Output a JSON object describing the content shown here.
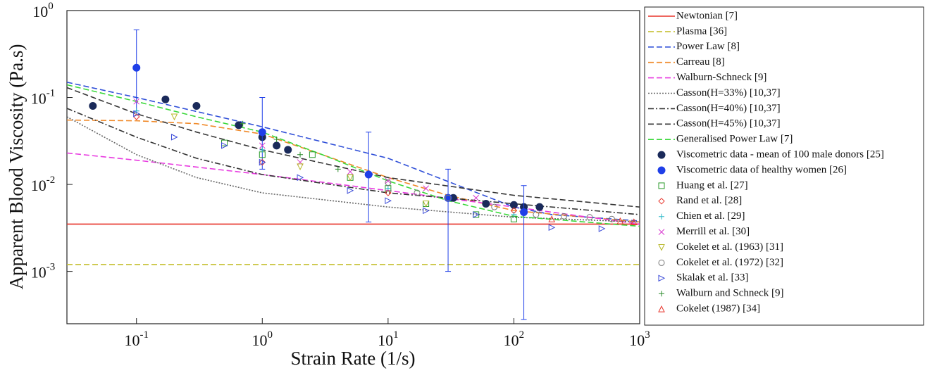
{
  "chart_data": {
    "type": "line",
    "xlabel": "Strain Rate (1/s)",
    "ylabel": "Apparent Blood Viscosity (Pa.s)",
    "xscale": "log",
    "yscale": "log",
    "xlim": [
      0.028,
      1000
    ],
    "ylim": [
      0.00025,
      1
    ],
    "xticks": [
      {
        "value": 0.1,
        "label": "10",
        "exponent": "-1"
      },
      {
        "value": 1,
        "label": "10",
        "exponent": "0"
      },
      {
        "value": 10,
        "label": "10",
        "exponent": "1"
      },
      {
        "value": 100,
        "label": "10",
        "exponent": "2"
      },
      {
        "value": 1000,
        "label": "10",
        "exponent": "3"
      }
    ],
    "yticks": [
      {
        "value": 0.001,
        "label": "10",
        "exponent": "-3"
      },
      {
        "value": 0.01,
        "label": "10",
        "exponent": "-2"
      },
      {
        "value": 0.1,
        "label": "10",
        "exponent": "-1"
      },
      {
        "value": 1,
        "label": "10",
        "exponent": "0"
      }
    ],
    "legend": "outside-right",
    "series": [
      {
        "name": "Newtonian [7]",
        "color": "#e8332a",
        "line_style": "solid",
        "x": [
          0.028,
          1000
        ],
        "values": [
          0.0035,
          0.0035
        ]
      },
      {
        "name": "Plasma [36]",
        "color": "#c8c23a",
        "line_style": "dashed",
        "x": [
          0.028,
          1000
        ],
        "values": [
          0.0012,
          0.0012
        ]
      },
      {
        "name": "Power Law [8]",
        "color": "#2f4fd8",
        "line_style": "dashed",
        "x": [
          0.028,
          0.1,
          1,
          10,
          100,
          200,
          1000
        ],
        "values": [
          0.15,
          0.1,
          0.046,
          0.02,
          0.0055,
          0.0045,
          0.0038
        ]
      },
      {
        "name": "Carreau [8]",
        "color": "#f08a2a",
        "line_style": "dashed",
        "x": [
          0.028,
          0.1,
          0.3,
          1,
          3,
          10,
          30,
          100,
          1000
        ],
        "values": [
          0.055,
          0.054,
          0.05,
          0.038,
          0.022,
          0.012,
          0.0075,
          0.005,
          0.0037
        ]
      },
      {
        "name": "Walburn-Schneck [9]",
        "color": "#e83ae0",
        "line_style": "dashed",
        "x": [
          0.028,
          0.1,
          1,
          10,
          100,
          1000
        ],
        "values": [
          0.023,
          0.019,
          0.013,
          0.0085,
          0.0055,
          0.0035
        ]
      },
      {
        "name": "Casson(H=33%) [10,37]",
        "color": "#666666",
        "line_style": "dotted",
        "x": [
          0.028,
          0.1,
          0.3,
          1,
          10,
          100,
          1000
        ],
        "values": [
          0.06,
          0.022,
          0.012,
          0.008,
          0.0055,
          0.0042,
          0.0037
        ]
      },
      {
        "name": "Casson(H=40%) [10,37]",
        "color": "#333333",
        "line_style": "dashdot",
        "x": [
          0.028,
          0.1,
          0.3,
          1,
          10,
          100,
          1000
        ],
        "values": [
          0.075,
          0.035,
          0.02,
          0.013,
          0.008,
          0.006,
          0.0045
        ]
      },
      {
        "name": "Casson(H=45%) [10,37]",
        "color": "#333333",
        "line_style": "dashed",
        "x": [
          0.028,
          0.1,
          0.3,
          1,
          10,
          100,
          1000
        ],
        "values": [
          0.13,
          0.065,
          0.04,
          0.025,
          0.012,
          0.0075,
          0.0055
        ]
      },
      {
        "name": "Generalised Power Law [7]",
        "color": "#3ad83a",
        "line_style": "dashed",
        "x": [
          0.028,
          0.1,
          0.3,
          1,
          3,
          10,
          30,
          100,
          1000
        ],
        "values": [
          0.14,
          0.09,
          0.06,
          0.04,
          0.022,
          0.011,
          0.0065,
          0.0043,
          0.0033
        ]
      },
      {
        "name": "Viscometric data - mean of 100 male donors [25]",
        "color": "#1a2a5a",
        "marker": "circle-filled",
        "x": [
          0.045,
          0.17,
          0.3,
          0.65,
          1,
          1.3,
          1.6,
          30,
          33,
          60,
          100,
          120,
          160
        ],
        "values": [
          0.08,
          0.095,
          0.08,
          0.048,
          0.035,
          0.028,
          0.025,
          0.007,
          0.007,
          0.006,
          0.0058,
          0.0055,
          0.0055
        ]
      },
      {
        "name": "Viscometric data of healthy women [26]",
        "color": "#1f3fe8",
        "marker": "circle-filled",
        "x": [
          0.1,
          1,
          7,
          30,
          120
        ],
        "values": [
          0.22,
          0.04,
          0.013,
          0.007,
          0.0048
        ],
        "lower": [
          0.07,
          0.015,
          0.0037,
          0.001,
          0.00028
        ],
        "upper": [
          0.6,
          0.1,
          0.04,
          0.015,
          0.0097
        ]
      },
      {
        "name": "Huang et al. [27]",
        "color": "#2a9a2a",
        "marker": "square",
        "x": [
          0.5,
          1,
          2.5,
          5,
          10,
          20,
          50,
          100
        ],
        "values": [
          0.03,
          0.022,
          0.022,
          0.012,
          0.009,
          0.006,
          0.0045,
          0.004
        ]
      },
      {
        "name": "Rand et al. [28]",
        "color": "#e8332a",
        "marker": "diamond",
        "x": [
          0.1,
          1,
          10,
          100
        ],
        "values": [
          0.06,
          0.018,
          0.008,
          0.005
        ]
      },
      {
        "name": "Chien et al. [29]",
        "color": "#2ab8c8",
        "marker": "plus",
        "x": [
          0.1,
          1,
          10,
          100
        ],
        "values": [
          0.07,
          0.025,
          0.009,
          0.0045
        ]
      },
      {
        "name": "Merrill et al. [30]",
        "color": "#d83ad0",
        "marker": "x",
        "x": [
          0.1,
          1,
          2,
          5,
          10,
          20,
          50
        ],
        "values": [
          0.09,
          0.028,
          0.018,
          0.014,
          0.011,
          0.009,
          0.007
        ]
      },
      {
        "name": "Cokelet et al. (1963) [31]",
        "color": "#b8b82a",
        "marker": "triangle-down",
        "x": [
          0.2,
          2,
          5,
          20
        ],
        "values": [
          0.06,
          0.016,
          0.012,
          0.006
        ]
      },
      {
        "name": "Cokelet et al. (1972) [32]",
        "color": "#777777",
        "marker": "circle",
        "x": [
          10,
          17,
          30,
          70,
          150,
          250,
          400,
          600
        ],
        "values": [
          0.0105,
          0.008,
          0.007,
          0.0055,
          0.0045,
          0.0043,
          0.0042,
          0.004
        ]
      },
      {
        "name": "Skalak et al.  [33]",
        "color": "#3a4ad8",
        "marker": "triangle-right",
        "x": [
          0.1,
          0.2,
          0.5,
          1,
          2,
          5,
          10,
          20,
          50,
          200,
          500
        ],
        "values": [
          0.065,
          0.035,
          0.028,
          0.018,
          0.012,
          0.0085,
          0.0065,
          0.005,
          0.0045,
          0.0032,
          0.0031
        ]
      },
      {
        "name": "Walburn and Schneck  [9]",
        "color": "#2a8a2a",
        "marker": "plus",
        "x": [
          0.7,
          1.3,
          2,
          4
        ],
        "values": [
          0.05,
          0.033,
          0.022,
          0.015
        ]
      },
      {
        "name": "Cokelet (1987) [34]",
        "color": "#e8332a",
        "marker": "triangle-up",
        "x": [
          200,
          700,
          900
        ],
        "values": [
          0.004,
          0.0038,
          0.0037
        ]
      }
    ]
  }
}
